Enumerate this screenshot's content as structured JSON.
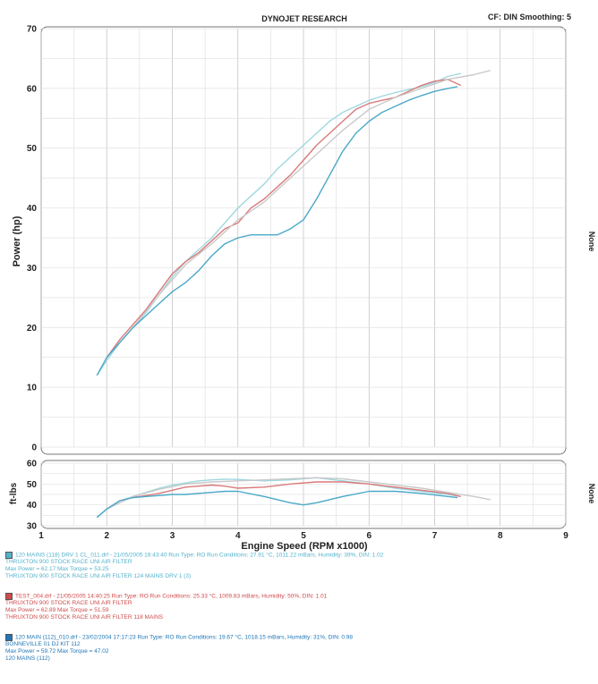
{
  "chart_data": [
    {
      "type": "line",
      "title": "DYNOJET RESEARCH",
      "header_right": "CF: DIN  Smoothing: 5",
      "xlabel": "",
      "ylabel": "Power (hp)",
      "right_label": "None",
      "xlim": [
        1,
        9
      ],
      "ylim": [
        0,
        70
      ],
      "y_ticks": [
        0,
        10,
        20,
        30,
        40,
        50,
        60,
        70
      ],
      "grid": true,
      "series": [
        {
          "color": "#9fd8e0",
          "x": [
            1.85,
            2.0,
            2.2,
            2.4,
            2.6,
            2.8,
            3.0,
            3.2,
            3.4,
            3.6,
            3.8,
            4.0,
            4.2,
            4.4,
            4.6,
            4.8,
            5.0,
            5.2,
            5.4,
            5.6,
            5.8,
            6.0,
            6.2,
            6.4,
            6.6,
            6.8,
            7.0,
            7.2,
            7.4
          ],
          "y": [
            12,
            14.5,
            17.5,
            20,
            22.5,
            25.5,
            28.5,
            31,
            33,
            35,
            37.5,
            40,
            42,
            44,
            46.5,
            48.5,
            50.5,
            52.5,
            54.5,
            56,
            57,
            58,
            58.7,
            59.3,
            59.8,
            60.3,
            61,
            62,
            62.5
          ]
        },
        {
          "color": "#d97a7a",
          "x": [
            2.0,
            2.2,
            2.4,
            2.6,
            2.8,
            3.0,
            3.2,
            3.4,
            3.6,
            3.8,
            4.0,
            4.2,
            4.4,
            4.6,
            4.8,
            5.0,
            5.2,
            5.4,
            5.6,
            5.8,
            6.0,
            6.2,
            6.4,
            6.6,
            6.8,
            7.0,
            7.2,
            7.4
          ],
          "y": [
            15,
            18,
            20.5,
            23,
            26,
            29,
            31,
            32.5,
            34.5,
            36.5,
            37.5,
            40,
            41.5,
            43.5,
            45.5,
            48,
            50.5,
            52.5,
            54.5,
            56.5,
            57.5,
            58,
            58.5,
            59.5,
            60.5,
            61.2,
            61.5,
            60.5
          ]
        },
        {
          "color": "#c9c9c9",
          "x": [
            2.0,
            2.4,
            2.8,
            3.2,
            3.6,
            4.0,
            4.4,
            4.8,
            5.2,
            5.6,
            6.0,
            6.4,
            6.8,
            7.2,
            7.6,
            7.85
          ],
          "y": [
            15,
            20,
            25.5,
            30.5,
            34,
            38,
            41,
            45,
            49,
            53,
            56.5,
            58.5,
            60,
            61.5,
            62.3,
            63
          ]
        },
        {
          "color": "#4aa8c8",
          "x": [
            1.85,
            2.0,
            2.2,
            2.4,
            2.6,
            2.8,
            3.0,
            3.2,
            3.4,
            3.6,
            3.8,
            4.0,
            4.2,
            4.4,
            4.6,
            4.8,
            5.0,
            5.2,
            5.4,
            5.6,
            5.8,
            6.0,
            6.2,
            6.4,
            6.6,
            6.8,
            7.0,
            7.2,
            7.35
          ],
          "y": [
            12,
            15,
            17.5,
            20,
            22,
            24,
            26,
            27.5,
            29.5,
            32,
            34,
            35,
            35.5,
            35.5,
            35.5,
            36.5,
            38,
            41.5,
            45.5,
            49.5,
            52.5,
            54.5,
            56,
            57,
            58,
            58.8,
            59.5,
            60,
            60.3
          ]
        }
      ]
    },
    {
      "type": "line",
      "xlabel": "Engine Speed (RPM x1000)",
      "ylabel": "ft-lbs",
      "right_label": "None",
      "xlim": [
        1,
        9
      ],
      "ylim": [
        30,
        60
      ],
      "y_ticks": [
        30,
        40,
        50,
        60
      ],
      "x_ticks": [
        1,
        2,
        3,
        4,
        5,
        6,
        7,
        8,
        9
      ],
      "grid": true,
      "series": [
        {
          "color": "#9fd8e0",
          "x": [
            1.85,
            2.0,
            2.2,
            2.4,
            2.6,
            2.8,
            3.0,
            3.2,
            3.4,
            3.6,
            3.8,
            4.0,
            4.4,
            4.8,
            5.2,
            5.6,
            6.0,
            6.4,
            6.8,
            7.2,
            7.4
          ],
          "y": [
            34,
            38,
            42,
            44,
            46,
            48,
            49.5,
            50.5,
            51.5,
            52,
            52.3,
            52.2,
            51.5,
            52,
            53,
            51.5,
            50,
            48,
            46.5,
            45,
            44
          ]
        },
        {
          "color": "#d97a7a",
          "x": [
            2.0,
            2.2,
            2.4,
            2.6,
            2.8,
            3.0,
            3.2,
            3.4,
            3.6,
            3.8,
            4.0,
            4.4,
            4.8,
            5.2,
            5.6,
            6.0,
            6.4,
            6.8,
            7.2,
            7.4
          ],
          "y": [
            38,
            42,
            43.5,
            44.5,
            45.5,
            47,
            48.5,
            49,
            49.5,
            49,
            48,
            48.5,
            50,
            51,
            51,
            50,
            48.5,
            47,
            45.5,
            44
          ]
        },
        {
          "color": "#c9c9c9",
          "x": [
            2.0,
            2.4,
            2.8,
            3.2,
            3.6,
            4.0,
            4.4,
            4.8,
            5.2,
            5.6,
            6.0,
            6.4,
            6.8,
            7.2,
            7.6,
            7.85
          ],
          "y": [
            38,
            44,
            47.5,
            50,
            51,
            51.5,
            52,
            52.5,
            53,
            52.5,
            51,
            49.5,
            48,
            46,
            44,
            42.5
          ]
        },
        {
          "color": "#4aa8c8",
          "x": [
            1.85,
            2.0,
            2.2,
            2.4,
            2.6,
            2.8,
            3.0,
            3.2,
            3.4,
            3.6,
            3.8,
            4.0,
            4.4,
            4.8,
            5.0,
            5.2,
            5.6,
            6.0,
            6.4,
            6.8,
            7.2,
            7.35
          ],
          "y": [
            34,
            38,
            42,
            43.5,
            44,
            44.5,
            45,
            45,
            45.5,
            46,
            46.5,
            46.5,
            44,
            41,
            40,
            41,
            44,
            46.5,
            46.5,
            45.5,
            44,
            43.5
          ]
        }
      ]
    }
  ],
  "legends": [
    {
      "color": "#53b2cc",
      "lines": [
        "120 MAINS (118) DRV 1 CL_011.drf - 21/05/2005 16:43:40  Run Type: RO  Run Conditions: 27.91 °C, 1011.22 mBars,  Humidity: 39%, DIN: 1.02",
        "THRUXTON 900  STOCK RACE UNI AIR FILTER",
        "Max Power = 62.17  Max Torque = 53.25",
        "THRUXTON 900  STOCK RACE UNI AIR FILTER  124 MAINS DRV 1 (3)"
      ]
    },
    {
      "color": "#d04a4a",
      "lines": [
        "TEST_004.drf - 21/05/2005 14:40:25  Run Type: RO  Run Conditions: 25.33 °C, 1009.83 mBars,  Humidity: 50%, DIN: 1.01",
        "THRUXTON 900  STOCK RACE UNI AIR FILTER",
        "Max Power = 62.89  Max Torque = 51.59",
        "THRUXTON 900  STOCK RACE UNI AIR FILTER  118 MAINS"
      ]
    },
    {
      "color": "#1f76b6",
      "lines": [
        "120 MAIN (112)_010.drf - 23/02/2004 17:17:23  Run Type: RO  Run Conditions: 19.67 °C, 1018.15 mBars,  Humidity: 31%, DIN: 0.98",
        "BONNEVILLE 01  DJ KIT 112",
        "Max Power = 59.72  Max Torque = 47.02",
        "120 MAINS  (112)"
      ]
    }
  ]
}
